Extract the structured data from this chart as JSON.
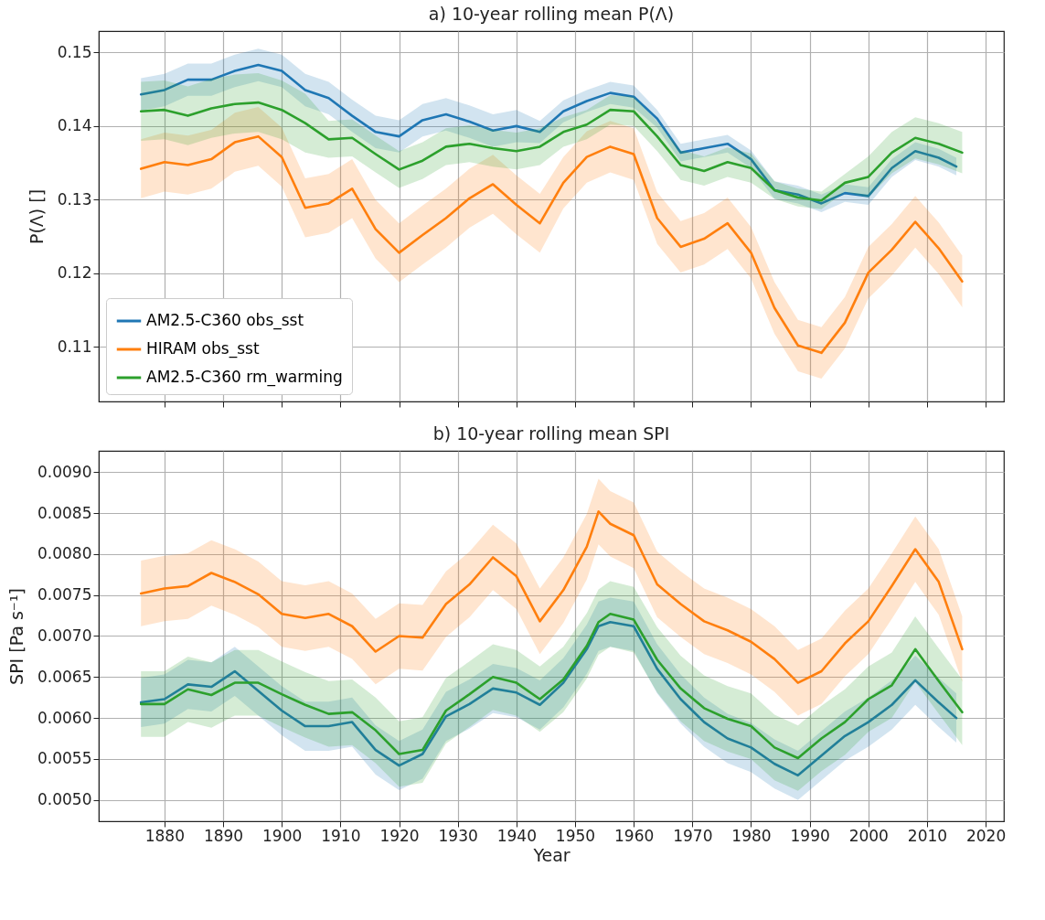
{
  "chart_data": [
    {
      "type": "line",
      "title": "a) 10-year rolling mean P(Λ)",
      "ylabel": "P(Λ) []",
      "x": [
        1876,
        1880,
        1884,
        1888,
        1892,
        1896,
        1900,
        1904,
        1908,
        1912,
        1916,
        1920,
        1924,
        1928,
        1932,
        1936,
        1940,
        1944,
        1948,
        1952,
        1956,
        1960,
        1964,
        1968,
        1972,
        1976,
        1980,
        1984,
        1988,
        1992,
        1996,
        2000,
        2004,
        2008,
        2012,
        2016
      ],
      "xlim": [
        1868.8,
        2023.1
      ],
      "xticks": [
        1880,
        1890,
        1900,
        1910,
        1920,
        1930,
        1940,
        1950,
        1960,
        1970,
        1980,
        1990,
        2000,
        2010,
        2020
      ],
      "ylim": [
        0.1026,
        0.1529
      ],
      "yticks": [
        0.11,
        0.12,
        0.13,
        0.14,
        0.15
      ],
      "tick_labels": "y",
      "grid": true,
      "legend": "bottom left",
      "series": [
        {
          "name": "AM2.5-C360 obs_sst",
          "color": "#1f77b4",
          "x": [
            1876,
            1880,
            1884,
            1888,
            1892,
            1896,
            1900,
            1904,
            1908,
            1912,
            1916,
            1920,
            1924,
            1928,
            1932,
            1936,
            1940,
            1944,
            1948,
            1952,
            1956,
            1960,
            1964,
            1968,
            1972,
            1976,
            1980,
            1984,
            1988,
            1992,
            1996,
            2000,
            2004,
            2008,
            2012,
            2015
          ],
          "values": [
            0.1443,
            0.1449,
            0.1463,
            0.1463,
            0.1475,
            0.1483,
            0.1475,
            0.1449,
            0.1438,
            0.1414,
            0.1392,
            0.1386,
            0.1408,
            0.1416,
            0.1406,
            0.1394,
            0.14,
            0.1392,
            0.142,
            0.1434,
            0.1445,
            0.144,
            0.141,
            0.1364,
            0.137,
            0.1376,
            0.1355,
            0.1313,
            0.1307,
            0.1295,
            0.1309,
            0.1305,
            0.1343,
            0.1366,
            0.1357,
            0.1345
          ],
          "lower": [
            0.1421,
            0.1427,
            0.1441,
            0.1441,
            0.1453,
            0.1461,
            0.1453,
            0.1427,
            0.1416,
            0.1392,
            0.137,
            0.1364,
            0.1386,
            0.1394,
            0.1384,
            0.1372,
            0.1378,
            0.1377,
            0.1405,
            0.1419,
            0.143,
            0.1425,
            0.1398,
            0.1352,
            0.1358,
            0.1364,
            0.1343,
            0.1301,
            0.1295,
            0.1283,
            0.1297,
            0.1293,
            0.1331,
            0.1354,
            0.1345,
            0.1333
          ],
          "upper": [
            0.1465,
            0.1471,
            0.1485,
            0.1485,
            0.1497,
            0.1505,
            0.1497,
            0.1471,
            0.146,
            0.1436,
            0.1414,
            0.1408,
            0.143,
            0.1438,
            0.1428,
            0.1416,
            0.1422,
            0.1407,
            0.1435,
            0.1449,
            0.146,
            0.1455,
            0.1422,
            0.1376,
            0.1382,
            0.1388,
            0.1367,
            0.1325,
            0.1319,
            0.1307,
            0.1321,
            0.1317,
            0.1355,
            0.1378,
            0.1369,
            0.1357
          ]
        },
        {
          "name": "HIRAM obs_sst",
          "color": "#ff7f0e",
          "values": [
            0.1342,
            0.1351,
            0.1347,
            0.1355,
            0.1378,
            0.1386,
            0.1358,
            0.1289,
            0.1295,
            0.1315,
            0.126,
            0.1228,
            0.1252,
            0.1275,
            0.1302,
            0.1321,
            0.1293,
            0.1268,
            0.1323,
            0.1358,
            0.1372,
            0.1362,
            0.1275,
            0.1236,
            0.1247,
            0.1268,
            0.1228,
            0.1153,
            0.1102,
            0.1092,
            0.1133,
            0.1201,
            0.1232,
            0.127,
            0.1234,
            0.1189
          ],
          "lower": [
            0.1302,
            0.1311,
            0.1307,
            0.1315,
            0.1338,
            0.1346,
            0.1318,
            0.1249,
            0.1255,
            0.1275,
            0.122,
            0.1188,
            0.1212,
            0.1235,
            0.1262,
            0.1281,
            0.1253,
            0.1228,
            0.1288,
            0.1323,
            0.1337,
            0.1327,
            0.124,
            0.1201,
            0.1212,
            0.1233,
            0.1193,
            0.1118,
            0.1067,
            0.1057,
            0.1098,
            0.1166,
            0.1197,
            0.1235,
            0.1199,
            0.1154
          ],
          "upper": [
            0.1382,
            0.1391,
            0.1387,
            0.1395,
            0.1418,
            0.1426,
            0.1398,
            0.1329,
            0.1335,
            0.1355,
            0.13,
            0.1268,
            0.1292,
            0.1315,
            0.1342,
            0.1361,
            0.1333,
            0.1308,
            0.1358,
            0.1393,
            0.1407,
            0.1397,
            0.131,
            0.1271,
            0.1282,
            0.1303,
            0.1263,
            0.1188,
            0.1137,
            0.1127,
            0.1168,
            0.1236,
            0.1267,
            0.1305,
            0.1269,
            0.1224
          ]
        },
        {
          "name": "AM2.5-C360 rm_warming",
          "color": "#2ca02c",
          "values": [
            0.142,
            0.1422,
            0.1414,
            0.1424,
            0.143,
            0.1432,
            0.1422,
            0.1404,
            0.1382,
            0.1384,
            0.1362,
            0.1341,
            0.1353,
            0.1372,
            0.1376,
            0.137,
            0.1366,
            0.1372,
            0.1392,
            0.1402,
            0.1422,
            0.142,
            0.1386,
            0.1347,
            0.1339,
            0.1351,
            0.1343,
            0.1313,
            0.1303,
            0.1299,
            0.1323,
            0.1331,
            0.1364,
            0.1384,
            0.1376,
            0.1364
          ],
          "lower": [
            0.138,
            0.1382,
            0.1374,
            0.1384,
            0.139,
            0.1392,
            0.1382,
            0.1364,
            0.1357,
            0.1359,
            0.1337,
            0.1316,
            0.1328,
            0.1347,
            0.1351,
            0.1345,
            0.1341,
            0.1347,
            0.1372,
            0.1382,
            0.1402,
            0.14,
            0.1366,
            0.1327,
            0.1319,
            0.1331,
            0.1323,
            0.1301,
            0.1291,
            0.1287,
            0.1311,
            0.1303,
            0.1336,
            0.1356,
            0.1348,
            0.1336
          ],
          "upper": [
            0.146,
            0.1462,
            0.1454,
            0.1464,
            0.147,
            0.1472,
            0.1462,
            0.1444,
            0.1407,
            0.1409,
            0.1387,
            0.1366,
            0.1378,
            0.1397,
            0.1401,
            0.1395,
            0.1391,
            0.1397,
            0.1412,
            0.1422,
            0.1442,
            0.144,
            0.1406,
            0.1367,
            0.1359,
            0.1371,
            0.1363,
            0.1325,
            0.1315,
            0.1311,
            0.1335,
            0.1359,
            0.1392,
            0.1412,
            0.1404,
            0.1392
          ]
        }
      ]
    },
    {
      "type": "line",
      "title": "b) 10-year rolling mean SPI",
      "xlabel": "Year",
      "ylabel": "SPI [Pa s⁻¹]",
      "x": [
        1876,
        1880,
        1884,
        1888,
        1892,
        1896,
        1900,
        1904,
        1908,
        1912,
        1916,
        1920,
        1924,
        1928,
        1932,
        1936,
        1940,
        1944,
        1948,
        1952,
        1954,
        1956,
        1960,
        1964,
        1968,
        1972,
        1976,
        1980,
        1984,
        1988,
        1992,
        1996,
        2000,
        2004,
        2008,
        2012,
        2016
      ],
      "xlim": [
        1868.8,
        2023.1
      ],
      "xticks": [
        1880,
        1890,
        1900,
        1910,
        1920,
        1930,
        1940,
        1950,
        1960,
        1970,
        1980,
        1990,
        2000,
        2010,
        2020
      ],
      "ylim": [
        0.00474,
        0.00926
      ],
      "yticks": [
        {
          "value": 0.005,
          "label": "0.0050"
        },
        {
          "value": 0.0055,
          "label": "0.0055"
        },
        {
          "value": 0.006,
          "label": "0.0060"
        },
        {
          "value": 0.0065,
          "label": "0.0065"
        },
        {
          "value": 0.007,
          "label": "0.0070"
        },
        {
          "value": 0.0075,
          "label": "0.0075"
        },
        {
          "value": 0.008,
          "label": "0.0080"
        },
        {
          "value": 0.0085,
          "label": "0.0085"
        },
        {
          "value": 0.009,
          "label": "0.0090"
        }
      ],
      "grid": true,
      "series": [
        {
          "color": "#1f77b4",
          "x": [
            1876,
            1880,
            1884,
            1888,
            1892,
            1896,
            1900,
            1904,
            1908,
            1912,
            1916,
            1920,
            1924,
            1928,
            1932,
            1936,
            1940,
            1944,
            1948,
            1952,
            1954,
            1956,
            1960,
            1964,
            1968,
            1972,
            1976,
            1980,
            1984,
            1988,
            1992,
            1996,
            2000,
            2004,
            2008,
            2012,
            2015
          ],
          "values": [
            0.00619,
            0.00623,
            0.00641,
            0.00638,
            0.00657,
            0.00633,
            0.00609,
            0.0059,
            0.0059,
            0.00595,
            0.00561,
            0.00542,
            0.00556,
            0.00602,
            0.00617,
            0.00636,
            0.00631,
            0.00616,
            0.00643,
            0.00684,
            0.00712,
            0.00717,
            0.00712,
            0.0066,
            0.00623,
            0.00595,
            0.00575,
            0.00564,
            0.00544,
            0.0053,
            0.00554,
            0.00578,
            0.00595,
            0.00616,
            0.00646,
            0.00619,
            0.006
          ],
          "lower": [
            0.00589,
            0.00593,
            0.00611,
            0.00608,
            0.00627,
            0.00603,
            0.00579,
            0.0056,
            0.0056,
            0.00565,
            0.00531,
            0.00512,
            0.00526,
            0.00572,
            0.00587,
            0.00606,
            0.00601,
            0.00586,
            0.00613,
            0.00654,
            0.00682,
            0.00687,
            0.00682,
            0.0063,
            0.00593,
            0.00565,
            0.00545,
            0.00534,
            0.00514,
            0.005,
            0.00524,
            0.00548,
            0.00565,
            0.00586,
            0.00616,
            0.00589,
            0.0057
          ],
          "upper": [
            0.00649,
            0.00653,
            0.00671,
            0.00668,
            0.00687,
            0.00663,
            0.00639,
            0.0062,
            0.0062,
            0.00625,
            0.00591,
            0.00572,
            0.00586,
            0.00632,
            0.00647,
            0.00666,
            0.00661,
            0.00646,
            0.00673,
            0.00714,
            0.00742,
            0.00747,
            0.00742,
            0.0069,
            0.00653,
            0.00625,
            0.00605,
            0.00594,
            0.00574,
            0.0056,
            0.00584,
            0.00608,
            0.00625,
            0.00646,
            0.00676,
            0.00649,
            0.0063
          ]
        },
        {
          "color": "#ff7f0e",
          "values": [
            0.00752,
            0.00758,
            0.00761,
            0.00777,
            0.00766,
            0.00751,
            0.00727,
            0.00722,
            0.00727,
            0.00712,
            0.00681,
            0.007,
            0.00698,
            0.00739,
            0.00763,
            0.00796,
            0.00773,
            0.00718,
            0.00756,
            0.00809,
            0.00852,
            0.00837,
            0.00823,
            0.00763,
            0.00739,
            0.00718,
            0.00707,
            0.00693,
            0.00672,
            0.00643,
            0.00657,
            0.00691,
            0.00718,
            0.00761,
            0.00806,
            0.00766,
            0.00684
          ],
          "lower": [
            0.00712,
            0.00718,
            0.00721,
            0.00737,
            0.00726,
            0.00711,
            0.00687,
            0.00682,
            0.00687,
            0.00672,
            0.00641,
            0.0066,
            0.00658,
            0.00699,
            0.00723,
            0.00756,
            0.00733,
            0.00678,
            0.00716,
            0.00769,
            0.00812,
            0.00797,
            0.00783,
            0.00723,
            0.00699,
            0.00678,
            0.00667,
            0.00653,
            0.00632,
            0.00603,
            0.00617,
            0.00651,
            0.00678,
            0.00721,
            0.00766,
            0.00726,
            0.00644
          ],
          "upper": [
            0.00792,
            0.00798,
            0.00801,
            0.00817,
            0.00806,
            0.00791,
            0.00767,
            0.00762,
            0.00767,
            0.00752,
            0.00721,
            0.0074,
            0.00738,
            0.00779,
            0.00803,
            0.00836,
            0.00813,
            0.00758,
            0.00796,
            0.00849,
            0.00892,
            0.00877,
            0.00863,
            0.00803,
            0.00779,
            0.00758,
            0.00747,
            0.00733,
            0.00712,
            0.00683,
            0.00697,
            0.00731,
            0.00758,
            0.00801,
            0.00846,
            0.00806,
            0.00724
          ]
        },
        {
          "color": "#2ca02c",
          "values": [
            0.00617,
            0.00617,
            0.00635,
            0.00628,
            0.00643,
            0.00643,
            0.00629,
            0.00616,
            0.00605,
            0.00607,
            0.00585,
            0.00556,
            0.00561,
            0.00609,
            0.00629,
            0.0065,
            0.00643,
            0.00623,
            0.00647,
            0.00688,
            0.00717,
            0.00727,
            0.0072,
            0.00671,
            0.00636,
            0.00612,
            0.00599,
            0.0059,
            0.00564,
            0.00551,
            0.00575,
            0.00595,
            0.00623,
            0.0064,
            0.00684,
            0.00645,
            0.00607
          ],
          "lower": [
            0.00577,
            0.00577,
            0.00595,
            0.00588,
            0.00603,
            0.00603,
            0.00589,
            0.00576,
            0.00565,
            0.00567,
            0.00545,
            0.00516,
            0.00521,
            0.00569,
            0.00589,
            0.0061,
            0.00603,
            0.00583,
            0.00607,
            0.00648,
            0.00677,
            0.00687,
            0.0068,
            0.00631,
            0.00596,
            0.00572,
            0.00559,
            0.0055,
            0.00524,
            0.00511,
            0.00535,
            0.00555,
            0.00583,
            0.006,
            0.00644,
            0.00605,
            0.00567
          ],
          "upper": [
            0.00657,
            0.00657,
            0.00675,
            0.00668,
            0.00683,
            0.00683,
            0.00669,
            0.00656,
            0.00645,
            0.00647,
            0.00625,
            0.00596,
            0.00601,
            0.00649,
            0.00669,
            0.0069,
            0.00683,
            0.00663,
            0.00687,
            0.00728,
            0.00757,
            0.00767,
            0.0076,
            0.00711,
            0.00676,
            0.00652,
            0.00639,
            0.0063,
            0.00604,
            0.00591,
            0.00615,
            0.00635,
            0.00663,
            0.0068,
            0.00724,
            0.00685,
            0.00647
          ]
        }
      ]
    }
  ]
}
